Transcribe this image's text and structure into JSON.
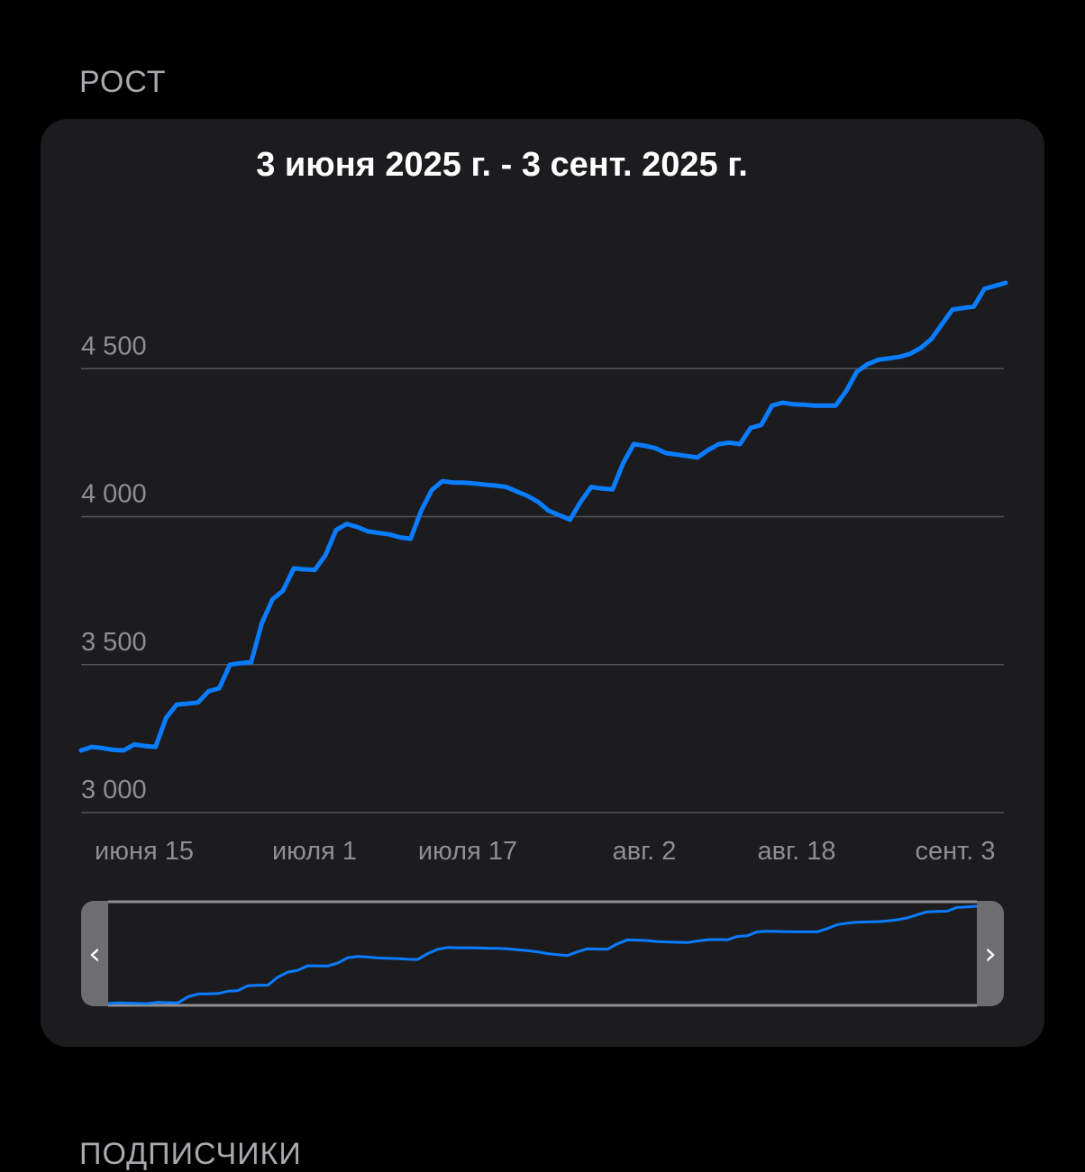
{
  "sections": {
    "growth_label": "РОСТ",
    "subscribers_label": "ПОДПИСЧИКИ"
  },
  "card": {
    "date_range": "3 июня 2025 г. - 3 сент. 2025 г."
  },
  "colors": {
    "line": "#0a7cff",
    "background": "#000000",
    "card": "#1c1c1e",
    "grid": "#545458",
    "tick_text": "#8e8e93"
  },
  "scrubber": {
    "left_handle_icon": "chevron-left-icon",
    "right_handle_icon": "chevron-right-icon",
    "left_glyph": "‹",
    "right_glyph": "›"
  },
  "chart_data": {
    "type": "line",
    "title": "3 июня 2025 г. - 3 сент. 2025 г.",
    "xlabel": "",
    "ylabel": "",
    "ylim": [
      3000,
      5000
    ],
    "yticks": [
      3000,
      3500,
      4000,
      4500
    ],
    "ytick_labels": [
      "3 000",
      "3 500",
      "4 000",
      "4 500"
    ],
    "xtick_labels": [
      "июня 15",
      "июля 1",
      "июля 17",
      "авг. 2",
      "авг. 18",
      "сент. 3"
    ],
    "grid": true,
    "legend": "none",
    "series": [
      {
        "values": [
          3210,
          3222,
          3218,
          3212,
          3210,
          3230,
          3225,
          3222,
          3320,
          3365,
          3368,
          3372,
          3410,
          3420,
          3500,
          3505,
          3508,
          3640,
          3720,
          3750,
          3825,
          3822,
          3820,
          3870,
          3955,
          3975,
          3965,
          3950,
          3945,
          3940,
          3930,
          3925,
          4020,
          4090,
          4120,
          4115,
          4115,
          4112,
          4108,
          4105,
          4100,
          4085,
          4070,
          4050,
          4020,
          4005,
          3990,
          4050,
          4100,
          4095,
          4092,
          4180,
          4245,
          4240,
          4232,
          4215,
          4210,
          4205,
          4200,
          4225,
          4245,
          4250,
          4245,
          4300,
          4310,
          4375,
          4385,
          4380,
          4378,
          4375,
          4375,
          4375,
          4425,
          4490,
          4515,
          4530,
          4535,
          4540,
          4550,
          4570,
          4600,
          4650,
          4700,
          4705,
          4710,
          4770,
          4780,
          4790
        ]
      }
    ]
  }
}
